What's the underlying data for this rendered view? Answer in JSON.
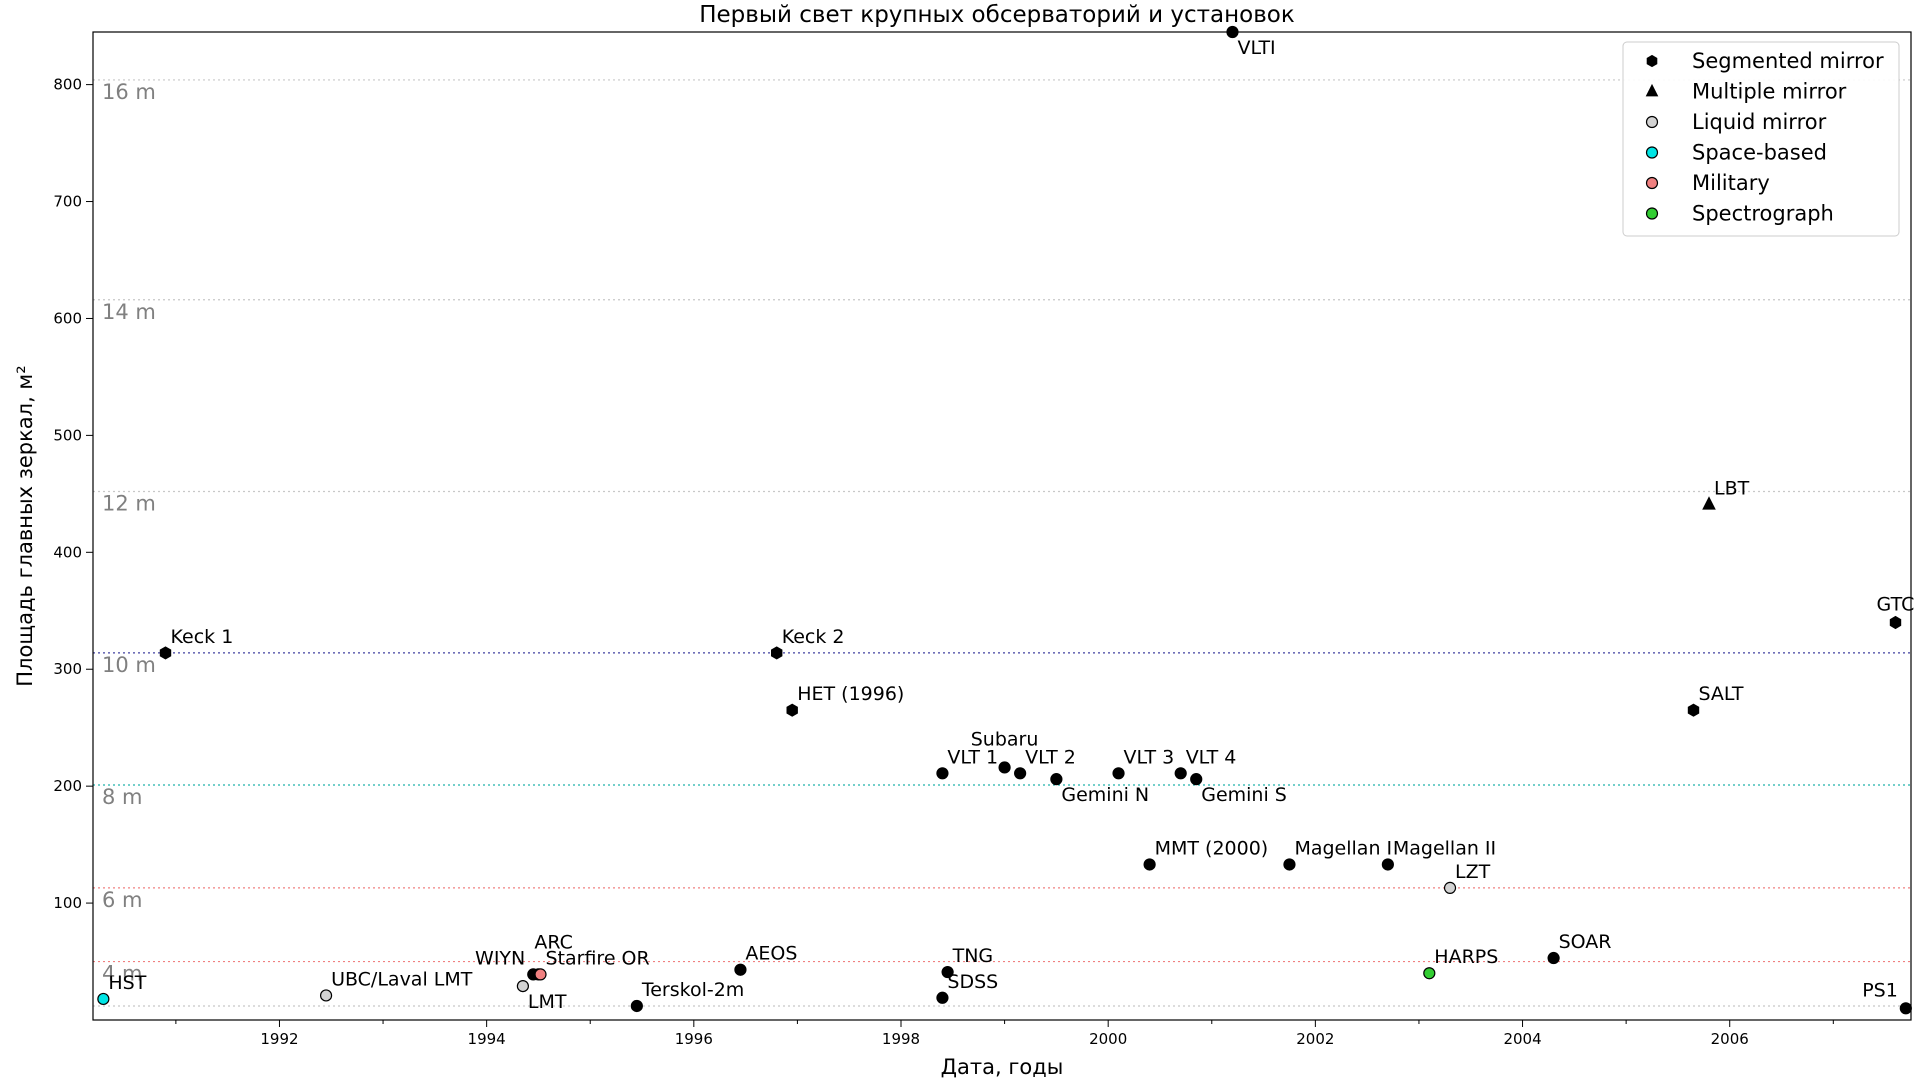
{
  "chart_data": {
    "type": "scatter",
    "title": "Первый свет крупных обсерваторий и установок",
    "xlabel": "Дата, годы",
    "ylabel": "Площадь главных зеркал, м²",
    "xlim": [
      1990.2,
      2007.75
    ],
    "ylim": [
      0,
      845
    ],
    "xticks": [
      1992,
      1994,
      1996,
      1998,
      2000,
      2002,
      2004,
      2006
    ],
    "yticks": [
      100,
      200,
      300,
      400,
      500,
      600,
      700,
      800
    ],
    "grid": false,
    "legend_position": "top-right",
    "legend": [
      {
        "label": "Segmented mirror",
        "marker": "hexagon",
        "color": "#000000"
      },
      {
        "label": "Multiple mirror",
        "marker": "triangle",
        "color": "#000000"
      },
      {
        "label": "Liquid mirror",
        "marker": "circle",
        "color": "#d3d3d3"
      },
      {
        "label": "Space-based",
        "marker": "circle",
        "color": "#00e5e5"
      },
      {
        "label": "Military",
        "marker": "circle",
        "color": "#f08080"
      },
      {
        "label": "Spectrograph",
        "marker": "circle",
        "color": "#32cd32"
      }
    ],
    "reference_lines": [
      {
        "label": "4 m",
        "y": 50,
        "color": "#f08080",
        "style": "dotted"
      },
      {
        "label": "6 m",
        "y": 113,
        "color": "#f08080",
        "style": "dotted"
      },
      {
        "label": "8 m",
        "y": 201,
        "color": "#20b2aa",
        "style": "dotted"
      },
      {
        "label": "10 m",
        "y": 314,
        "color": "#4040a0",
        "style": "dotted"
      },
      {
        "label": "12 m",
        "y": 452,
        "color": "#c8c8c8",
        "style": "dotted"
      },
      {
        "label": "14 m",
        "y": 616,
        "color": "#c8c8c8",
        "style": "dotted"
      },
      {
        "label": "16 m",
        "y": 804,
        "color": "#c8c8c8",
        "style": "dotted"
      },
      {
        "label": "",
        "y": 12,
        "color": "#c8c8c8",
        "style": "dotted"
      }
    ],
    "points": [
      {
        "label": "HST",
        "x": 1990.3,
        "y": 18,
        "type": "Space-based",
        "color": "#00e5e5",
        "marker": "circle",
        "pos": "ne"
      },
      {
        "label": "Keck 1",
        "x": 1990.9,
        "y": 314,
        "type": "Segmented mirror",
        "color": "#000000",
        "marker": "hexagon",
        "pos": "ne"
      },
      {
        "label": "UBC/Laval LMT",
        "x": 1992.45,
        "y": 21,
        "type": "Liquid mirror",
        "color": "#d3d3d3",
        "marker": "circle",
        "pos": "ne"
      },
      {
        "label": "LMT",
        "x": 1994.35,
        "y": 29,
        "type": "Liquid mirror",
        "color": "#d3d3d3",
        "marker": "circle",
        "pos": "se"
      },
      {
        "label": "WIYN",
        "x": 1994.45,
        "y": 39,
        "type": "Segmented mirror",
        "color": "#000000",
        "marker": "circle",
        "pos": "nw"
      },
      {
        "label": "ARC",
        "x": 1994.5,
        "y": 39,
        "type": "Segmented mirror",
        "color": "#000000",
        "marker": "circle",
        "pos": "n-high"
      },
      {
        "label": "Starfire OR",
        "x": 1994.52,
        "y": 39,
        "type": "Military",
        "color": "#f08080",
        "marker": "circle",
        "pos": "ne"
      },
      {
        "label": "Terskol-2m",
        "x": 1995.45,
        "y": 12,
        "type": "Segmented mirror",
        "color": "#000000",
        "marker": "circle",
        "pos": "ne"
      },
      {
        "label": "AEOS",
        "x": 1996.45,
        "y": 43,
        "type": "Segmented mirror",
        "color": "#000000",
        "marker": "circle",
        "pos": "ne"
      },
      {
        "label": "Keck 2",
        "x": 1996.8,
        "y": 314,
        "type": "Segmented mirror",
        "color": "#000000",
        "marker": "hexagon",
        "pos": "ne"
      },
      {
        "label": "HET (1996)",
        "x": 1996.95,
        "y": 265,
        "type": "Segmented mirror",
        "color": "#000000",
        "marker": "hexagon",
        "pos": "ne"
      },
      {
        "label": "VLT 1",
        "x": 1998.4,
        "y": 211,
        "type": "Segmented mirror",
        "color": "#000000",
        "marker": "circle",
        "pos": "ne"
      },
      {
        "label": "SDSS",
        "x": 1998.4,
        "y": 19,
        "type": "Segmented mirror",
        "color": "#000000",
        "marker": "circle",
        "pos": "ne"
      },
      {
        "label": "TNG",
        "x": 1998.45,
        "y": 41,
        "type": "Segmented mirror",
        "color": "#000000",
        "marker": "circle",
        "pos": "ne"
      },
      {
        "label": "Subaru",
        "x": 1999.0,
        "y": 216,
        "type": "Segmented mirror",
        "color": "#000000",
        "marker": "circle",
        "pos": "n"
      },
      {
        "label": "VLT 2",
        "x": 1999.15,
        "y": 211,
        "type": "Segmented mirror",
        "color": "#000000",
        "marker": "circle",
        "pos": "ne"
      },
      {
        "label": "Gemini N",
        "x": 1999.5,
        "y": 206,
        "type": "Segmented mirror",
        "color": "#000000",
        "marker": "circle",
        "pos": "se"
      },
      {
        "label": "VLT 3",
        "x": 2000.1,
        "y": 211,
        "type": "Segmented mirror",
        "color": "#000000",
        "marker": "circle",
        "pos": "ne"
      },
      {
        "label": "MMT (2000)",
        "x": 2000.4,
        "y": 133,
        "type": "Segmented mirror",
        "color": "#000000",
        "marker": "circle",
        "pos": "ne"
      },
      {
        "label": "VLT 4",
        "x": 2000.7,
        "y": 211,
        "type": "Segmented mirror",
        "color": "#000000",
        "marker": "circle",
        "pos": "ne"
      },
      {
        "label": "Gemini S",
        "x": 2000.85,
        "y": 206,
        "type": "Segmented mirror",
        "color": "#000000",
        "marker": "circle",
        "pos": "se"
      },
      {
        "label": "VLTI",
        "x": 2001.2,
        "y": 845,
        "type": "Segmented mirror",
        "color": "#000000",
        "marker": "circle",
        "pos": "se"
      },
      {
        "label": "Magellan I",
        "x": 2001.75,
        "y": 133,
        "type": "Segmented mirror",
        "color": "#000000",
        "marker": "circle",
        "pos": "ne"
      },
      {
        "label": "Magellan II",
        "x": 2002.7,
        "y": 133,
        "type": "Segmented mirror",
        "color": "#000000",
        "marker": "circle",
        "pos": "ne"
      },
      {
        "label": "HARPS",
        "x": 2003.1,
        "y": 40,
        "type": "Spectrograph",
        "color": "#32cd32",
        "marker": "circle",
        "pos": "ne"
      },
      {
        "label": "LZT",
        "x": 2003.3,
        "y": 113,
        "type": "Liquid mirror",
        "color": "#d3d3d3",
        "marker": "circle",
        "pos": "ne"
      },
      {
        "label": "SOAR",
        "x": 2004.3,
        "y": 53,
        "type": "Segmented mirror",
        "color": "#000000",
        "marker": "circle",
        "pos": "ne"
      },
      {
        "label": "SALT",
        "x": 2005.65,
        "y": 265,
        "type": "Segmented mirror",
        "color": "#000000",
        "marker": "hexagon",
        "pos": "ne"
      },
      {
        "label": "LBT",
        "x": 2005.8,
        "y": 441,
        "type": "Multiple mirror",
        "color": "#000000",
        "marker": "triangle",
        "pos": "ne"
      },
      {
        "label": "GTC",
        "x": 2007.6,
        "y": 340,
        "type": "Segmented mirror",
        "color": "#000000",
        "marker": "hexagon",
        "pos": "n"
      },
      {
        "label": "PS1",
        "x": 2007.7,
        "y": 10,
        "type": "Segmented mirror",
        "color": "#000000",
        "marker": "circle",
        "pos": "nw"
      }
    ]
  }
}
